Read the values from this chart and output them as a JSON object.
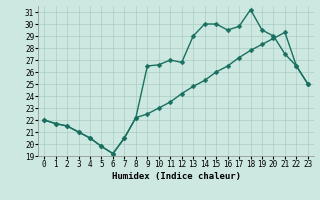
{
  "xlabel": "Humidex (Indice chaleur)",
  "background_color": "#cce8e0",
  "line_color": "#1a7060",
  "grid_color": "#aaccc4",
  "xlim": [
    -0.5,
    23.5
  ],
  "ylim": [
    19,
    31.5
  ],
  "yticks": [
    19,
    20,
    21,
    22,
    23,
    24,
    25,
    26,
    27,
    28,
    29,
    30,
    31
  ],
  "xticks": [
    0,
    1,
    2,
    3,
    4,
    5,
    6,
    7,
    8,
    9,
    10,
    11,
    12,
    13,
    14,
    15,
    16,
    17,
    18,
    19,
    20,
    21,
    22,
    23
  ],
  "series1_x": [
    0,
    1,
    2,
    3,
    4,
    5,
    6,
    7,
    8,
    9,
    10,
    11,
    12,
    13,
    14,
    15,
    16,
    17,
    18,
    19,
    20,
    21,
    22,
    23
  ],
  "series1_y": [
    22.0,
    21.7,
    21.5,
    21.0,
    20.5,
    19.8,
    19.2,
    20.5,
    22.2,
    26.5,
    26.6,
    27.0,
    26.8,
    29.0,
    30.0,
    30.0,
    29.5,
    29.8,
    31.2,
    29.5,
    29.0,
    27.5,
    26.5,
    25.0
  ],
  "series2_x": [
    0,
    1,
    2,
    3,
    4,
    5,
    6,
    7,
    8,
    9,
    10,
    11,
    12,
    13,
    14,
    15,
    16,
    17,
    18,
    19,
    20,
    21,
    22,
    23
  ],
  "series2_y": [
    22.0,
    21.7,
    21.5,
    21.0,
    20.5,
    19.8,
    19.2,
    20.5,
    22.2,
    22.5,
    23.0,
    23.5,
    24.2,
    24.8,
    25.3,
    26.0,
    26.5,
    27.2,
    27.8,
    28.3,
    28.8,
    29.3,
    26.5,
    25.0
  ],
  "markersize": 2.5,
  "linewidth": 1.0,
  "tick_fontsize": 5.5,
  "xlabel_fontsize": 6.5
}
